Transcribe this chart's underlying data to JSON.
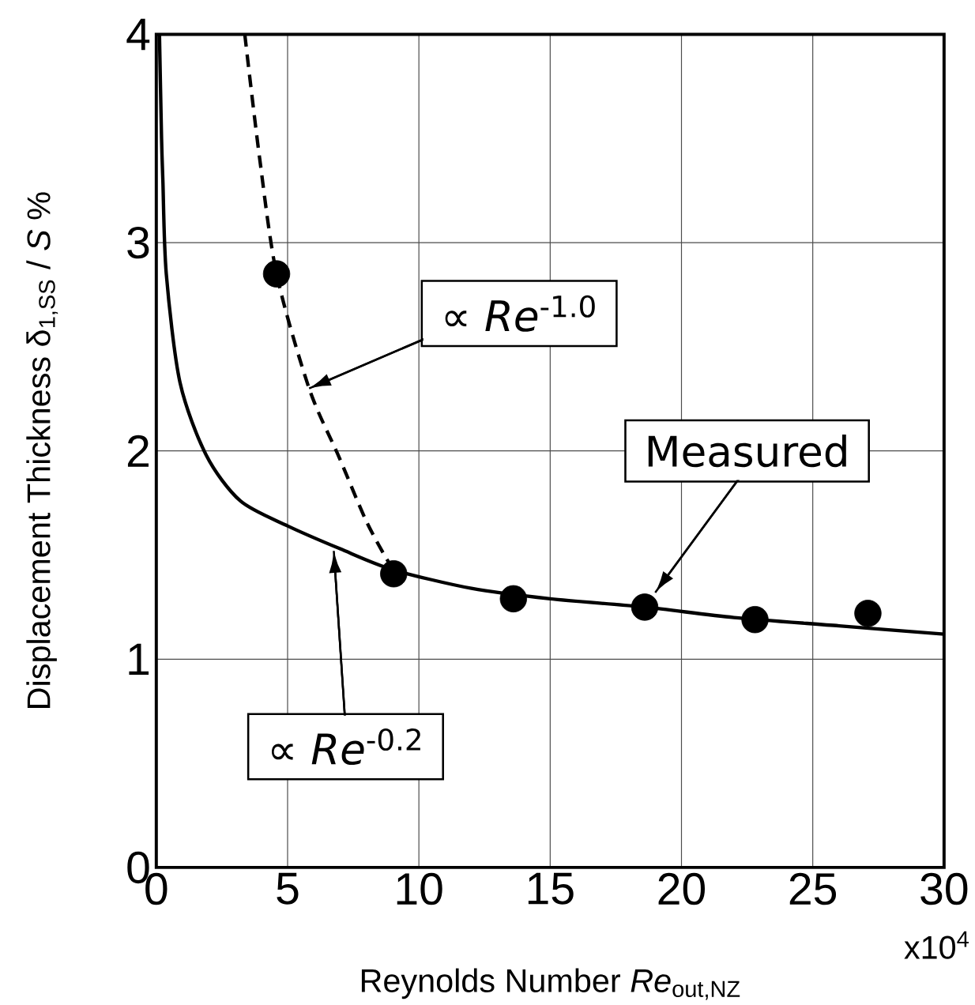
{
  "chart_data": {
    "type": "line",
    "xlabel": "Reynolds Number  *Re*$_{out,NZ}$",
    "ylabel": "Displacement Thickness  δ$_{1,SS}$ / *S* %",
    "xlim": [
      0,
      30
    ],
    "ylim": [
      0,
      4
    ],
    "xticks": [
      0,
      5,
      10,
      15,
      20,
      25,
      30
    ],
    "yticks": [
      0,
      1,
      2,
      3,
      4
    ],
    "grid": true,
    "series": [
      {
        "type": "line",
        "line_style": "solid",
        "color": "#000000",
        "x": [
          0.12,
          0.2,
          0.25,
          0.38,
          0.9,
          1.9,
          3.2,
          5,
          7,
          9,
          12,
          15,
          18.6,
          22,
          26,
          30
        ],
        "values": [
          4.0,
          3.5,
          3.3,
          2.85,
          2.33,
          1.98,
          1.76,
          1.64,
          1.53,
          1.43,
          1.34,
          1.29,
          1.25,
          1.2,
          1.16,
          1.12
        ]
      },
      {
        "type": "line",
        "line_style": "dashed",
        "color": "#000000",
        "x": [
          3.37,
          3.92,
          4.58,
          5.82,
          6.96,
          7.97,
          8.73,
          9.04
        ],
        "values": [
          4.0,
          3.42,
          2.85,
          2.3,
          1.97,
          1.67,
          1.49,
          1.43
        ]
      },
      {
        "type": "scatter",
        "marker": "circle",
        "color": "#000000",
        "x": [
          4.58,
          9.04,
          13.6,
          18.6,
          22.8,
          27.1
        ],
        "values": [
          2.85,
          1.41,
          1.29,
          1.25,
          1.19,
          1.22
        ]
      }
    ],
    "annotations": [
      {
        "text": "∝ *Re*$^{-1.0}$",
        "x": 5.82,
        "y": 2.3
      },
      {
        "text": "Measured",
        "x": 19.0,
        "y": 1.32
      },
      {
        "text": "∝ *Re*$^{-0.2}$",
        "x": 6.76,
        "y": 1.52
      },
      "x10$^{4}$"
    ]
  }
}
